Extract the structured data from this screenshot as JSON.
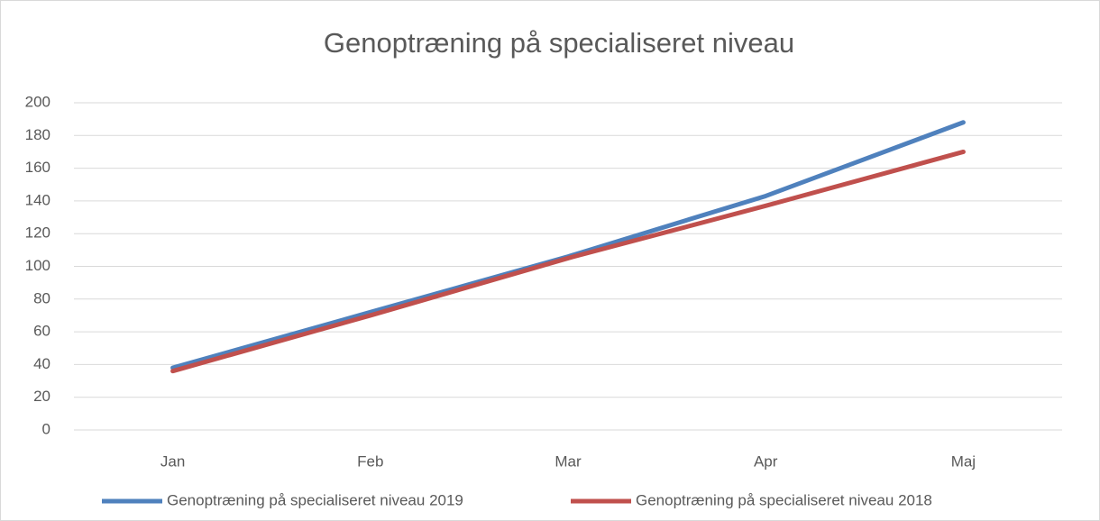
{
  "chart_data": {
    "type": "line",
    "title": "Genoptræning på specialiseret niveau",
    "categories": [
      "Jan",
      "Feb",
      "Mar",
      "Apr",
      "Maj"
    ],
    "series": [
      {
        "name": "Genoptræning på specialiseret niveau 2019",
        "color": "#4f81bd",
        "values": [
          38,
          72,
          106,
          143,
          188
        ]
      },
      {
        "name": "Genoptræning på specialiseret niveau 2018",
        "color": "#c0504d",
        "values": [
          36,
          70,
          105,
          137,
          170
        ]
      }
    ],
    "ylim": [
      0,
      200
    ],
    "yticks": [
      0,
      20,
      40,
      60,
      80,
      100,
      120,
      140,
      160,
      180,
      200
    ],
    "grid": true,
    "legend": "bottom"
  }
}
